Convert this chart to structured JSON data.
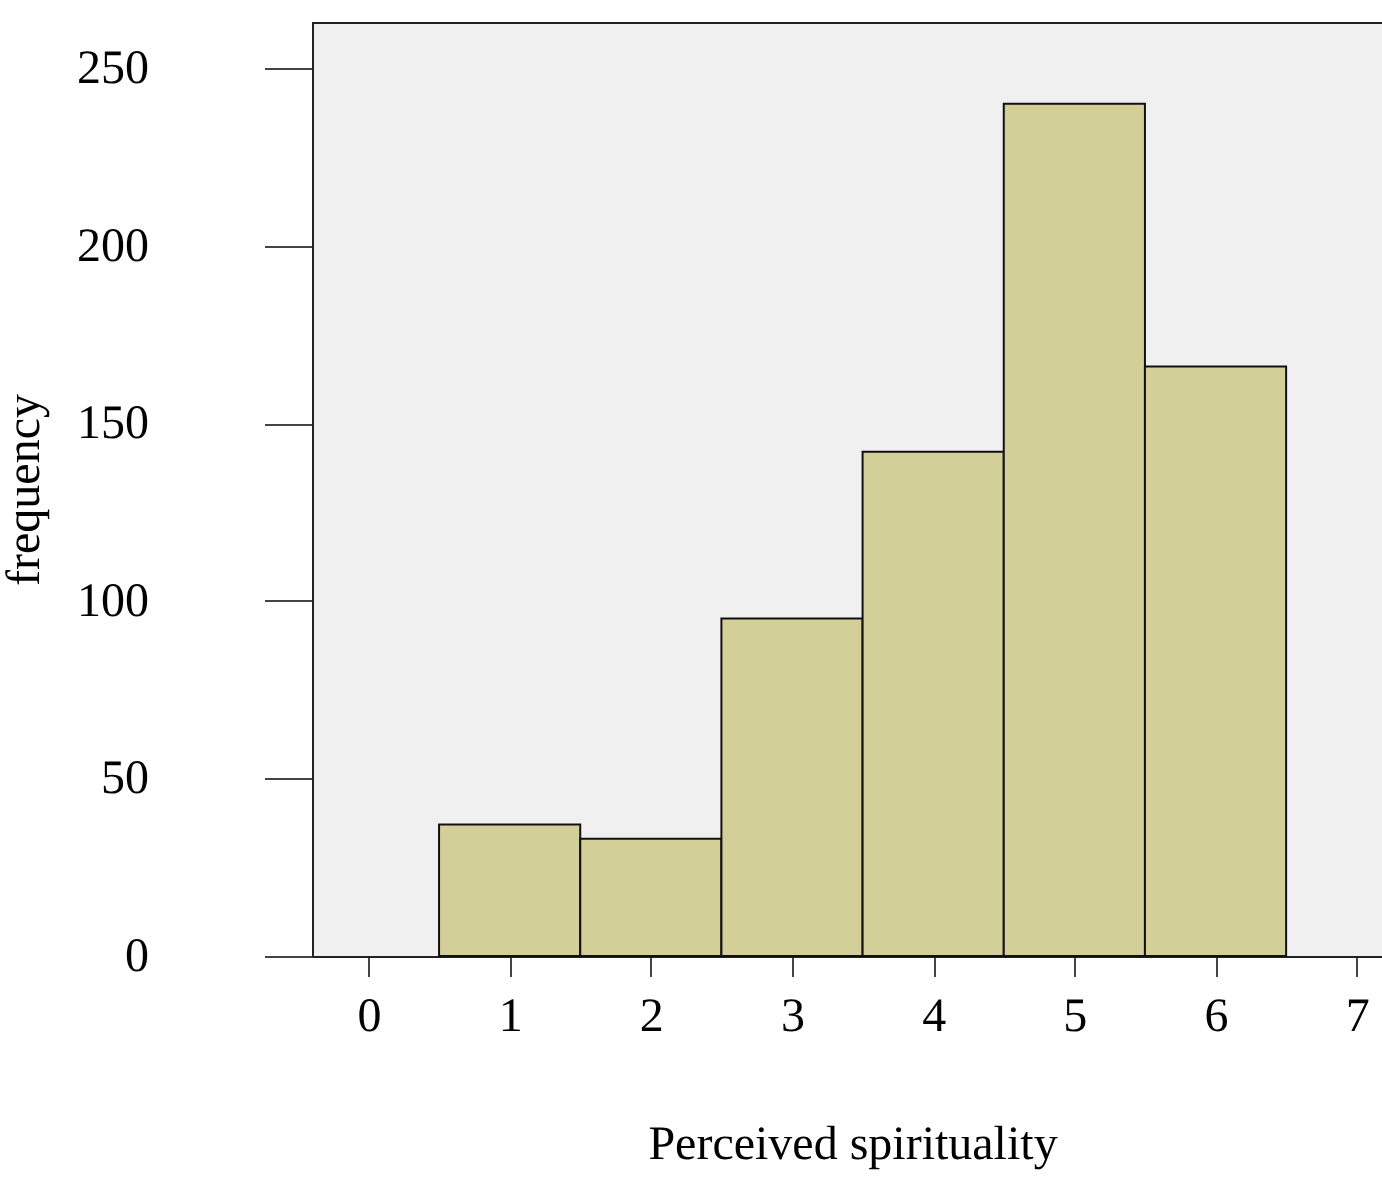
{
  "chart_data": {
    "type": "histogram",
    "xlabel": "Perceived spirituality",
    "ylabel": "frequency",
    "bins": [
      0.5,
      1.5,
      2.5,
      3.5,
      4.5,
      5.5,
      6.5
    ],
    "values": [
      37,
      33,
      95,
      142,
      240,
      166
    ],
    "color": "#d3cf99",
    "xlim": [
      -0.4,
      7.25
    ],
    "xticks": [
      0,
      1,
      2,
      3,
      4,
      5,
      6,
      7
    ],
    "ylim": [
      0,
      263
    ],
    "yticks": [
      0,
      50,
      100,
      150,
      200,
      250
    ],
    "grid": false
  }
}
